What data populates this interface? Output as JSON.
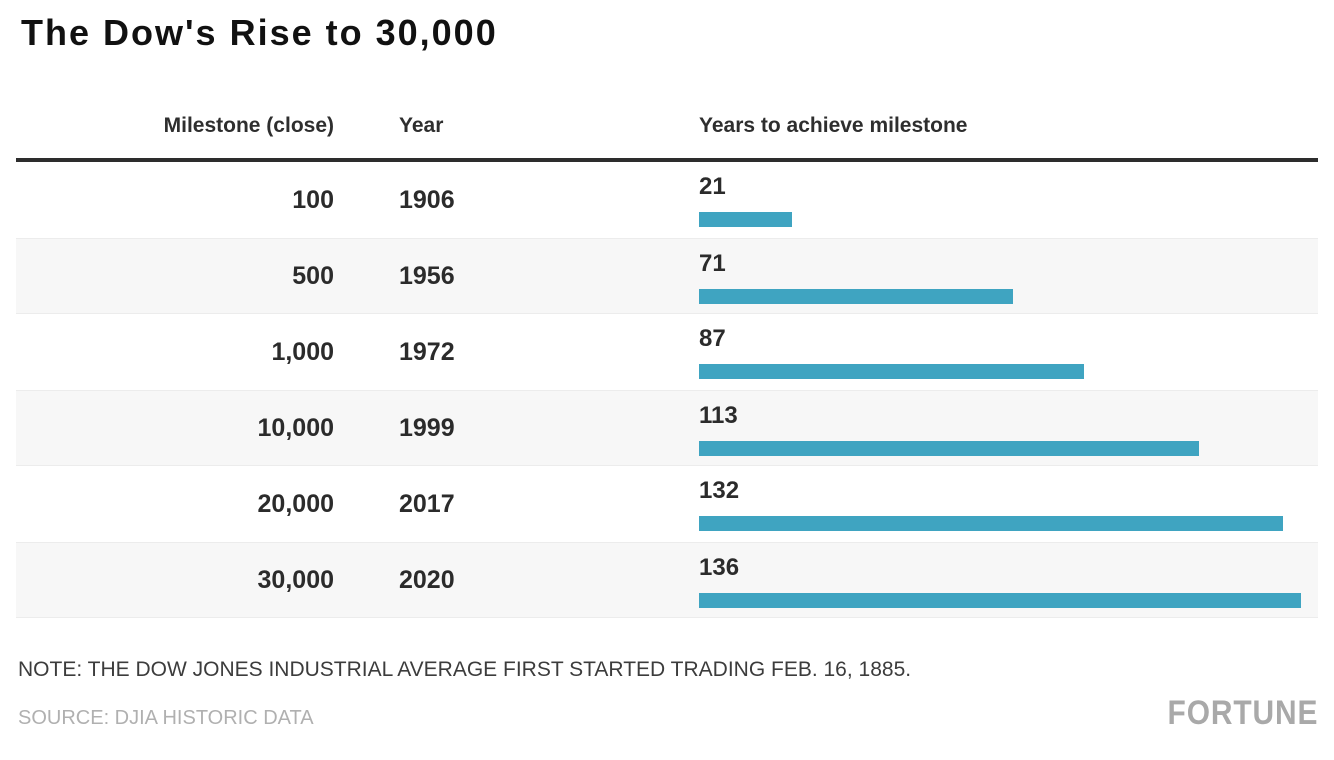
{
  "page": {
    "title": "The Dow's Rise to 30,000",
    "note": "NOTE: THE DOW JONES INDUSTRIAL AVERAGE FIRST STARTED TRADING FEB. 16, 1885.",
    "source": "SOURCE: DJIA HISTORIC DATA",
    "brand": "FORTUNE"
  },
  "table": {
    "headers": [
      "Milestone (close)",
      "Year",
      "Years to achieve milestone"
    ]
  },
  "chart_data": {
    "type": "bar",
    "orientation": "horizontal",
    "title": "The Dow's Rise to 30,000",
    "categories": [
      "100",
      "500",
      "1,000",
      "10,000",
      "20,000",
      "30,000"
    ],
    "years": [
      "1906",
      "1956",
      "1972",
      "1999",
      "2017",
      "2020"
    ],
    "values": [
      21,
      71,
      87,
      113,
      132,
      136
    ],
    "series_label": "Years to achieve milestone",
    "xlim": [
      0,
      136
    ],
    "bar_color": "#3FA4C1",
    "alt_row_color": "#f7f7f7",
    "legend": "none",
    "grid": "off"
  }
}
